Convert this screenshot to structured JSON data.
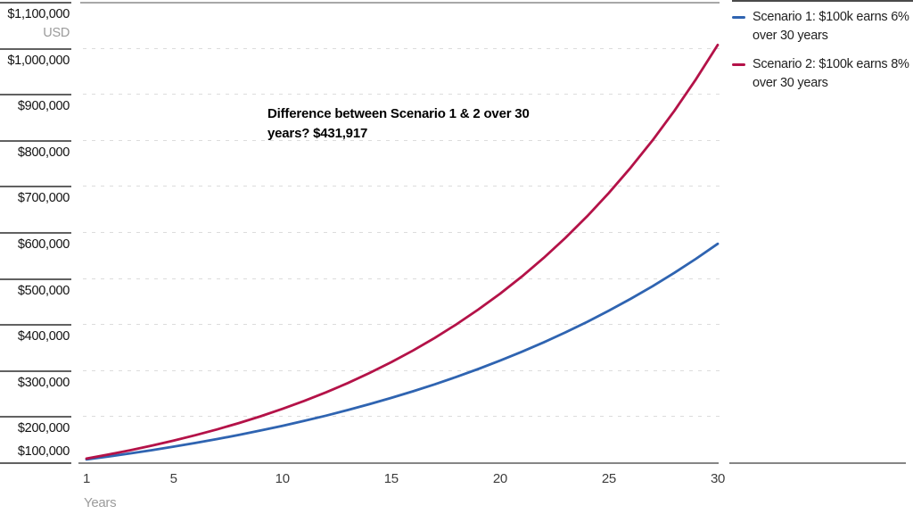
{
  "chart_data": {
    "type": "line",
    "title": "",
    "xlabel": "Years",
    "y_unit": "USD",
    "ylim": [
      100000,
      1100000
    ],
    "xlim": [
      1,
      30
    ],
    "y_tick_step": 100000,
    "y_tick_labels": [
      "$1,100,000",
      "$1,000,000",
      "$900,000",
      "$800,000",
      "$700,000",
      "$600,000",
      "$500,000",
      "$400,000",
      "$300,000",
      "$200,000",
      "$100,000"
    ],
    "x_ticks": [
      1,
      5,
      10,
      15,
      20,
      25,
      30
    ],
    "x": [
      1,
      2,
      3,
      4,
      5,
      6,
      7,
      8,
      9,
      10,
      11,
      12,
      13,
      14,
      15,
      16,
      17,
      18,
      19,
      20,
      21,
      22,
      23,
      24,
      25,
      26,
      27,
      28,
      29,
      30
    ],
    "series": [
      {
        "name": "Scenario 1: $100k earns 6% over 30 years",
        "color": "#2f64b1",
        "values": [
          106000,
          112360,
          119102,
          126248,
          133823,
          141852,
          150363,
          159385,
          168948,
          179085,
          189830,
          201220,
          213293,
          226090,
          239656,
          254035,
          269277,
          285434,
          302560,
          320714,
          339956,
          360354,
          381975,
          404894,
          429187,
          454938,
          482235,
          511169,
          541839,
          574349
        ]
      },
      {
        "name": "Scenario 2: $100k earns 8% over 30 years",
        "color": "#b41248",
        "values": [
          108000,
          116640,
          125971,
          136049,
          146933,
          158687,
          171382,
          185093,
          199900,
          215892,
          233164,
          251817,
          271962,
          293719,
          317217,
          342594,
          370002,
          399602,
          431570,
          466096,
          503383,
          543654,
          587146,
          634118,
          684848,
          739635,
          798806,
          862711,
          931727,
          1006266
        ]
      }
    ],
    "annotation": "Difference between Scenario 1 & 2 over 30 years? $431,917",
    "legend_position": "right",
    "grid": "horizontal-dashed",
    "difference_at_30_years": "$431,917"
  }
}
